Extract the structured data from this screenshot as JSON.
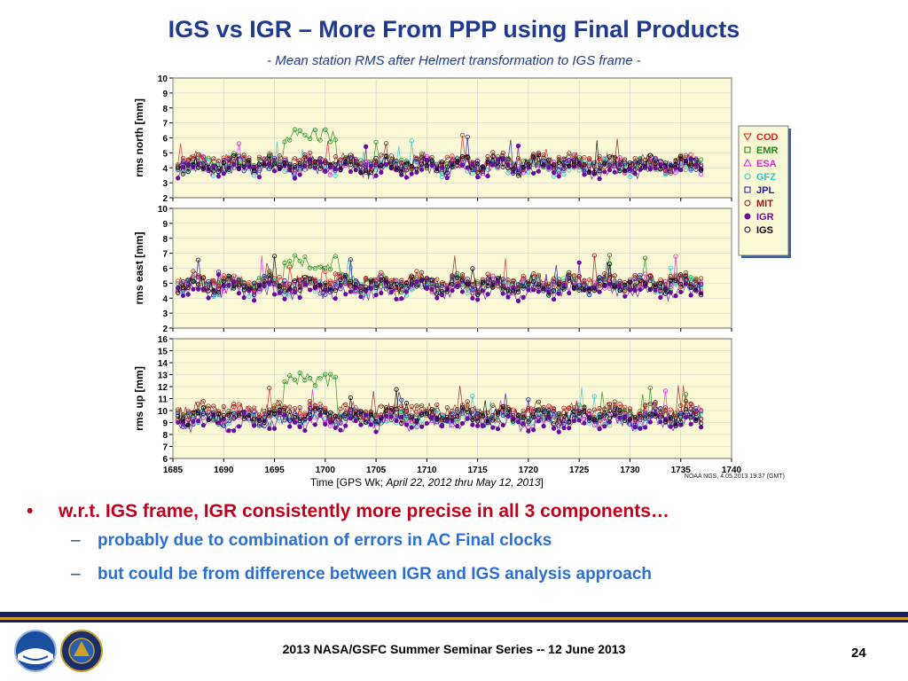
{
  "slide": {
    "title": "IGS vs IGR – More From PPP using Final Products",
    "subtitle_dash_left": "-",
    "subtitle": "Mean station RMS after Helmert transformation to IGS frame",
    "subtitle_dash_right": "-",
    "bullet1": "w.r.t. IGS frame, IGR consistently more precise in all 3 components…",
    "bullet1_marker": "•",
    "sub_bullets": [
      "probably due to combination of errors in AC Final clocks",
      "but could be from difference between IGR and IGS analysis approach"
    ],
    "sub_marker": "–",
    "footer": "2013 NASA/GSFC Summer Seminar Series -- 12 June 2013",
    "page_number": "24"
  },
  "chart_data": {
    "type": "scatter",
    "x_label_prefix": "Time   [GPS Wk; ",
    "x_label_italic": "April 22, 2012 thru May 12, 2013",
    "x_label_suffix": "]",
    "credit": "NOAA NGS, 4.05.2013 19:37 (GMT)",
    "x_ticks": [
      1685,
      1690,
      1695,
      1700,
      1705,
      1710,
      1715,
      1720,
      1725,
      1730,
      1735,
      1740
    ],
    "xlim": [
      1685,
      1740
    ],
    "data_x_range": [
      1685.5,
      1737
    ],
    "grid": true,
    "legend_position": "right",
    "panels": [
      {
        "ylabel": "rms north [mm]",
        "ylim": [
          2,
          10
        ],
        "y_ticks": [
          2,
          3,
          4,
          5,
          6,
          7,
          8,
          9,
          10
        ],
        "series": [
          {
            "name": "COD",
            "level": 4.3
          },
          {
            "name": "EMR",
            "level": 4.3,
            "bump": 6.2
          },
          {
            "name": "ESA",
            "level": 4.2
          },
          {
            "name": "GFZ",
            "level": 4.1
          },
          {
            "name": "JPL",
            "level": 4.2
          },
          {
            "name": "MIT",
            "level": 4.4
          },
          {
            "name": "IGR",
            "level": 3.9
          },
          {
            "name": "IGS",
            "level": 4.2
          }
        ]
      },
      {
        "ylabel": "rms east [mm]",
        "ylim": [
          2,
          10
        ],
        "y_ticks": [
          2,
          3,
          4,
          5,
          6,
          7,
          8,
          9,
          10
        ],
        "series": [
          {
            "name": "COD",
            "level": 5.0
          },
          {
            "name": "EMR",
            "level": 5.0,
            "bump": 6.4
          },
          {
            "name": "ESA",
            "level": 4.9
          },
          {
            "name": "GFZ",
            "level": 4.8
          },
          {
            "name": "JPL",
            "level": 4.9
          },
          {
            "name": "MIT",
            "level": 5.1
          },
          {
            "name": "IGR",
            "level": 4.5
          },
          {
            "name": "IGS",
            "level": 4.9
          }
        ]
      },
      {
        "ylabel": "rms up [mm]",
        "ylim": [
          6,
          16
        ],
        "y_ticks": [
          6,
          7,
          8,
          9,
          10,
          11,
          12,
          13,
          14,
          15,
          16
        ],
        "series": [
          {
            "name": "COD",
            "level": 9.8
          },
          {
            "name": "EMR",
            "level": 9.6,
            "bump": 12.6
          },
          {
            "name": "ESA",
            "level": 9.4
          },
          {
            "name": "GFZ",
            "level": 9.3
          },
          {
            "name": "JPL",
            "level": 9.5
          },
          {
            "name": "MIT",
            "level": 10.0
          },
          {
            "name": "IGR",
            "level": 9.0
          },
          {
            "name": "IGS",
            "level": 9.5
          }
        ]
      }
    ],
    "legend": [
      {
        "name": "COD",
        "color": "#e02020",
        "marker": "triangle-down"
      },
      {
        "name": "EMR",
        "color": "#1e8c1e",
        "marker": "square"
      },
      {
        "name": "ESA",
        "color": "#e020e0",
        "marker": "triangle-up"
      },
      {
        "name": "GFZ",
        "color": "#30c8c8",
        "marker": "circle"
      },
      {
        "name": "JPL",
        "color": "#1c1c9c",
        "marker": "square"
      },
      {
        "name": "MIT",
        "color": "#8c1a1a",
        "marker": "circle"
      },
      {
        "name": "IGR",
        "color": "#6a0aa0",
        "marker": "filled-circle"
      },
      {
        "name": "IGS",
        "color": "#000000",
        "marker": "circle"
      }
    ]
  }
}
